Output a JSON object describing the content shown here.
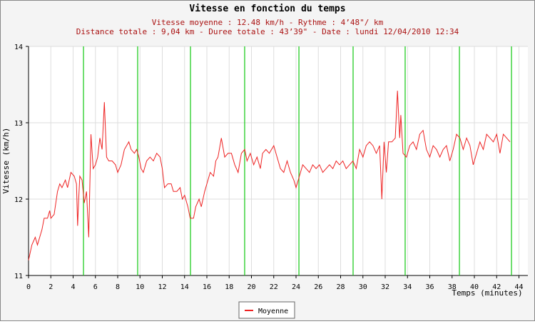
{
  "chart_data": {
    "type": "line",
    "title": "Vitesse en fonction du temps",
    "subtitle": [
      "Vitesse moyenne : 12.48 km/h - Rythme : 4’48\"/ km",
      "Distance totale : 9,04 km - Duree totale : 43’39\" - Date : lundi 12/04/2010 12:34"
    ],
    "x_label": "Temps (minutes)",
    "y_label": "Vitesse (km/h)",
    "xlim": [
      0,
      44.8
    ],
    "ylim": [
      11,
      14
    ],
    "xticks": [
      0,
      2,
      4,
      6,
      8,
      10,
      12,
      14,
      16,
      18,
      20,
      22,
      24,
      26,
      28,
      30,
      32,
      34,
      36,
      38,
      40,
      42,
      44
    ],
    "yticks": [
      11,
      12,
      13,
      14
    ],
    "grid": true,
    "km_markers": [
      4.93,
      9.79,
      14.53,
      19.39,
      24.26,
      29.12,
      33.79,
      38.66,
      43.33
    ],
    "km_marker_color": "#22cc22",
    "series": [
      {
        "name": "Moyenne",
        "color": "#ee2222",
        "x": [
          0,
          0.3,
          0.6,
          0.8,
          1.2,
          1.4,
          1.7,
          1.9,
          2.0,
          2.3,
          2.6,
          2.8,
          3.0,
          3.3,
          3.5,
          3.8,
          4.1,
          4.3,
          4.4,
          4.5,
          4.6,
          4.8,
          5.0,
          5.2,
          5.4,
          5.6,
          5.8,
          6.0,
          6.2,
          6.4,
          6.6,
          6.8,
          7.0,
          7.2,
          7.5,
          7.8,
          8.0,
          8.3,
          8.6,
          8.8,
          9.0,
          9.2,
          9.5,
          9.7,
          9.9,
          10.1,
          10.3,
          10.6,
          10.9,
          11.2,
          11.5,
          11.8,
          12.0,
          12.2,
          12.5,
          12.8,
          13.0,
          13.3,
          13.6,
          13.8,
          14.0,
          14.3,
          14.5,
          14.8,
          15.0,
          15.3,
          15.5,
          15.8,
          16.0,
          16.3,
          16.6,
          16.8,
          17.0,
          17.3,
          17.6,
          17.9,
          18.2,
          18.5,
          18.8,
          19.1,
          19.4,
          19.6,
          19.9,
          20.2,
          20.5,
          20.8,
          21.0,
          21.3,
          21.6,
          22.0,
          22.3,
          22.6,
          22.9,
          23.2,
          23.5,
          23.8,
          24.0,
          24.3,
          24.6,
          24.9,
          25.2,
          25.5,
          25.8,
          26.1,
          26.4,
          26.7,
          27.0,
          27.3,
          27.6,
          27.9,
          28.2,
          28.5,
          28.8,
          29.1,
          29.4,
          29.7,
          30.0,
          30.3,
          30.6,
          30.9,
          31.2,
          31.5,
          31.7,
          31.9,
          32.1,
          32.3,
          32.6,
          32.9,
          33.1,
          33.3,
          33.4,
          33.6,
          33.9,
          34.2,
          34.5,
          34.8,
          35.1,
          35.4,
          35.7,
          36.0,
          36.3,
          36.6,
          36.9,
          37.2,
          37.5,
          37.8,
          38.1,
          38.4,
          38.7,
          39.0,
          39.3,
          39.6,
          39.9,
          40.2,
          40.5,
          40.8,
          41.1,
          41.4,
          41.7,
          42.0,
          42.3,
          42.6,
          42.9,
          43.2
        ],
        "values": [
          11.2,
          11.4,
          11.5,
          11.4,
          11.6,
          11.75,
          11.75,
          11.85,
          11.75,
          11.8,
          12.1,
          12.2,
          12.15,
          12.25,
          12.15,
          12.35,
          12.3,
          12.2,
          11.65,
          12.0,
          12.3,
          12.25,
          11.95,
          12.1,
          11.5,
          12.85,
          12.4,
          12.45,
          12.55,
          12.8,
          12.65,
          13.27,
          12.55,
          12.5,
          12.5,
          12.45,
          12.35,
          12.45,
          12.65,
          12.7,
          12.75,
          12.65,
          12.6,
          12.65,
          12.55,
          12.4,
          12.35,
          12.5,
          12.55,
          12.5,
          12.6,
          12.55,
          12.4,
          12.15,
          12.2,
          12.2,
          12.1,
          12.1,
          12.15,
          12.0,
          12.05,
          11.9,
          11.75,
          11.75,
          11.9,
          12.0,
          11.9,
          12.1,
          12.2,
          12.35,
          12.3,
          12.5,
          12.55,
          12.8,
          12.55,
          12.6,
          12.6,
          12.45,
          12.35,
          12.6,
          12.65,
          12.5,
          12.6,
          12.45,
          12.55,
          12.4,
          12.6,
          12.65,
          12.6,
          12.7,
          12.55,
          12.4,
          12.35,
          12.5,
          12.35,
          12.25,
          12.15,
          12.3,
          12.45,
          12.4,
          12.35,
          12.45,
          12.4,
          12.45,
          12.35,
          12.4,
          12.45,
          12.4,
          12.5,
          12.45,
          12.5,
          12.4,
          12.45,
          12.5,
          12.4,
          12.65,
          12.55,
          12.7,
          12.75,
          12.7,
          12.6,
          12.7,
          12.0,
          12.75,
          12.35,
          12.75,
          12.75,
          12.8,
          13.42,
          12.8,
          13.1,
          12.6,
          12.55,
          12.7,
          12.75,
          12.65,
          12.85,
          12.9,
          12.65,
          12.55,
          12.7,
          12.65,
          12.55,
          12.65,
          12.7,
          12.5,
          12.65,
          12.85,
          12.8,
          12.65,
          12.8,
          12.7,
          12.45,
          12.6,
          12.75,
          12.65,
          12.85,
          12.8,
          12.75,
          12.85,
          12.6,
          12.85,
          12.8,
          12.75
        ]
      }
    ]
  }
}
